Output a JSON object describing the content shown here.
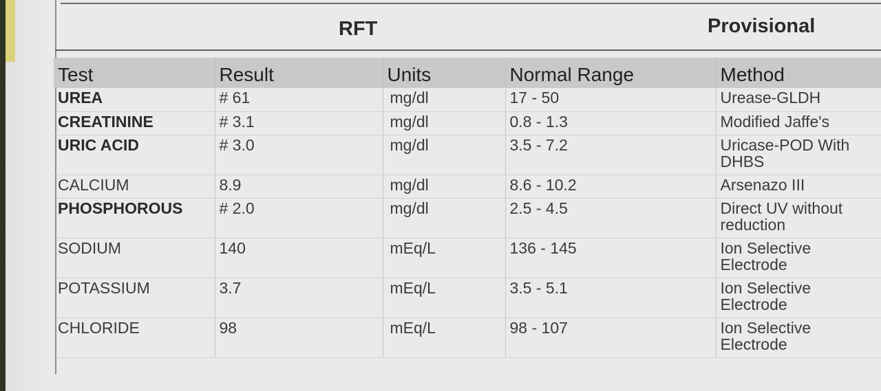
{
  "report": {
    "section_title": "RFT",
    "status": "Provisional"
  },
  "table": {
    "headers": [
      "Test",
      "Result",
      "Units",
      "Normal Range",
      "Method"
    ],
    "rows": [
      {
        "test": "UREA",
        "result": "# 61",
        "units": "mg/dl",
        "range": "17 - 50",
        "method": "Urease-GLDH",
        "bold": true
      },
      {
        "test": "CREATININE",
        "result": "# 3.1",
        "units": "mg/dl",
        "range": "0.8 - 1.3",
        "method": "Modified Jaffe's",
        "bold": true
      },
      {
        "test": "URIC ACID",
        "result": "# 3.0",
        "units": "mg/dl",
        "range": "3.5 - 7.2",
        "method": "Uricase-POD With DHBS",
        "bold": true
      },
      {
        "test": "CALCIUM",
        "result": "8.9",
        "units": "mg/dl",
        "range": "8.6 - 10.2",
        "method": "Arsenazo  III",
        "bold": false
      },
      {
        "test": "PHOSPHOROUS",
        "result": "# 2.0",
        "units": "mg/dl",
        "range": "2.5 - 4.5",
        "method": "Direct  UV  without reduction",
        "bold": true
      },
      {
        "test": "SODIUM",
        "result": "140",
        "units": "mEq/L",
        "range": "136 - 145",
        "method": "Ion Selective Electrode",
        "bold": false
      },
      {
        "test": "POTASSIUM",
        "result": "3.7",
        "units": "mEq/L",
        "range": "3.5 - 5.1",
        "method": "Ion Selective Electrode",
        "bold": false
      },
      {
        "test": "CHLORIDE",
        "result": "98",
        "units": "mEq/L",
        "range": "98 - 107",
        "method": "Ion Selective Electrode",
        "bold": false
      }
    ]
  }
}
